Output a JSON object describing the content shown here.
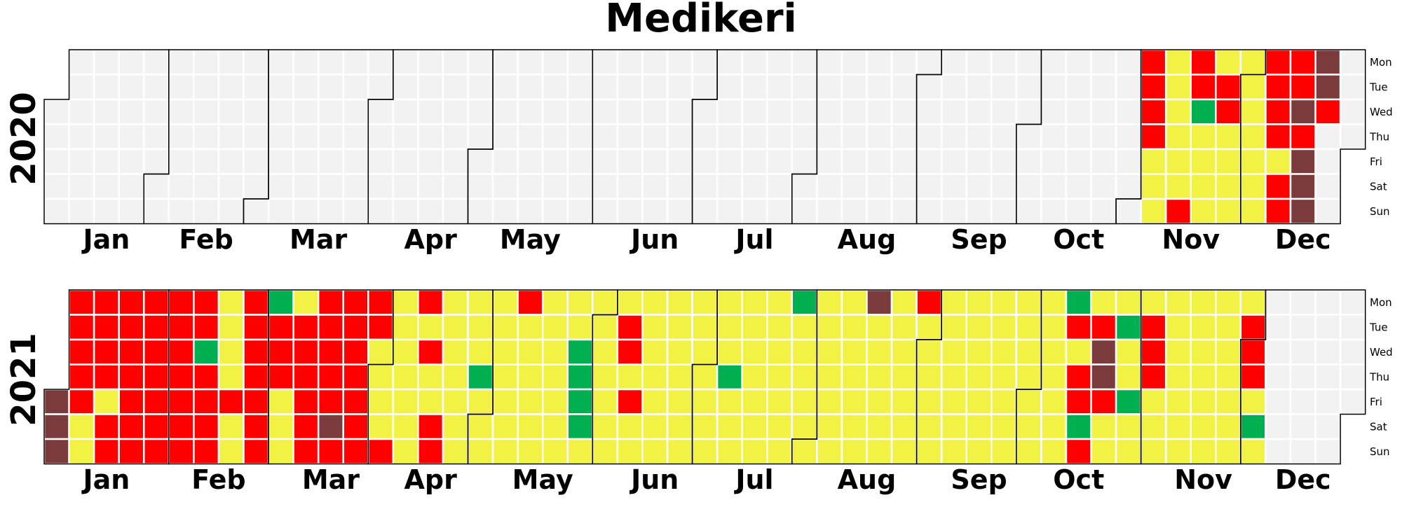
{
  "colors": {
    "empty": "#f2f2f2",
    "green": "#00b050",
    "yellow": "#f2f245",
    "red": "#ff0000",
    "brown": "#7b3a3c",
    "cell_border": "#ffffff",
    "month_border": "#000000"
  },
  "chart_data": {
    "type": "heatmap",
    "title": "Medikeri",
    "weekday_labels": [
      "Mon",
      "Tue",
      "Wed",
      "Thu",
      "Fri",
      "Sat",
      "Sun"
    ],
    "month_labels": [
      "Jan",
      "Feb",
      "Mar",
      "Apr",
      "May",
      "Jun",
      "Jul",
      "Aug",
      "Sep",
      "Oct",
      "Nov",
      "Dec"
    ],
    "value_scale": [
      "green",
      "yellow",
      "red",
      "brown"
    ],
    "years": [
      {
        "year": "2020",
        "first_date": "2020-11-02",
        "last_date": "2020-12-31",
        "weeks": [
          "RRRRYYY",
          "YYYYYYR",
          "RRGYYYY",
          "YRRYYYY",
          "YYYYYYY",
          "RRRRYRR",
          "RRBRBBB",
          "BBR"
        ]
      },
      {
        "year": "2021",
        "first_date": "2021-01-01",
        "last_date": "2021-12-05",
        "weeks": [
          "BBB",
          "RRRRRYY",
          "RRRRYRR",
          "RRRRRRR",
          "RRRRRRR",
          "RRRRRRR",
          "RRGRRRR",
          "YYYYRYY",
          "RRRRRRR",
          "GRRRYYY",
          "YRRRRRR",
          "RRRRRBR",
          "RRRRRRR",
          "RRYYYYR",
          "YYYYYYY",
          "RYRYYRR",
          "YYYYYYY",
          "YYYGYYY",
          "YYYYYYY",
          "RYYYYYY",
          "YYYYYYY",
          "YYGGGGY",
          "YYYYYYY",
          "YRRYRYY",
          "YYYYYYY",
          "YYYYYYY",
          "YYYYYYY",
          "YYYGYYY",
          "YYYYYYY",
          "YYYYYYY",
          "GYYYYYY",
          "YYYYYYY",
          "YYYYYYY",
          "BYYYYYY",
          "YYYYYYY",
          "RYYYYYY",
          "YYYYYYY",
          "YYYYYYY",
          "YYYYYYY",
          "YYYYYYY",
          "YYYYYYY",
          "GRYRRGR",
          "YRBBRYY",
          "YGYYGYY",
          "YRRRYYY",
          "YYYYYYY",
          "YYYYYYY",
          "YYYYYYY",
          "YRRRYGY"
        ]
      }
    ]
  }
}
